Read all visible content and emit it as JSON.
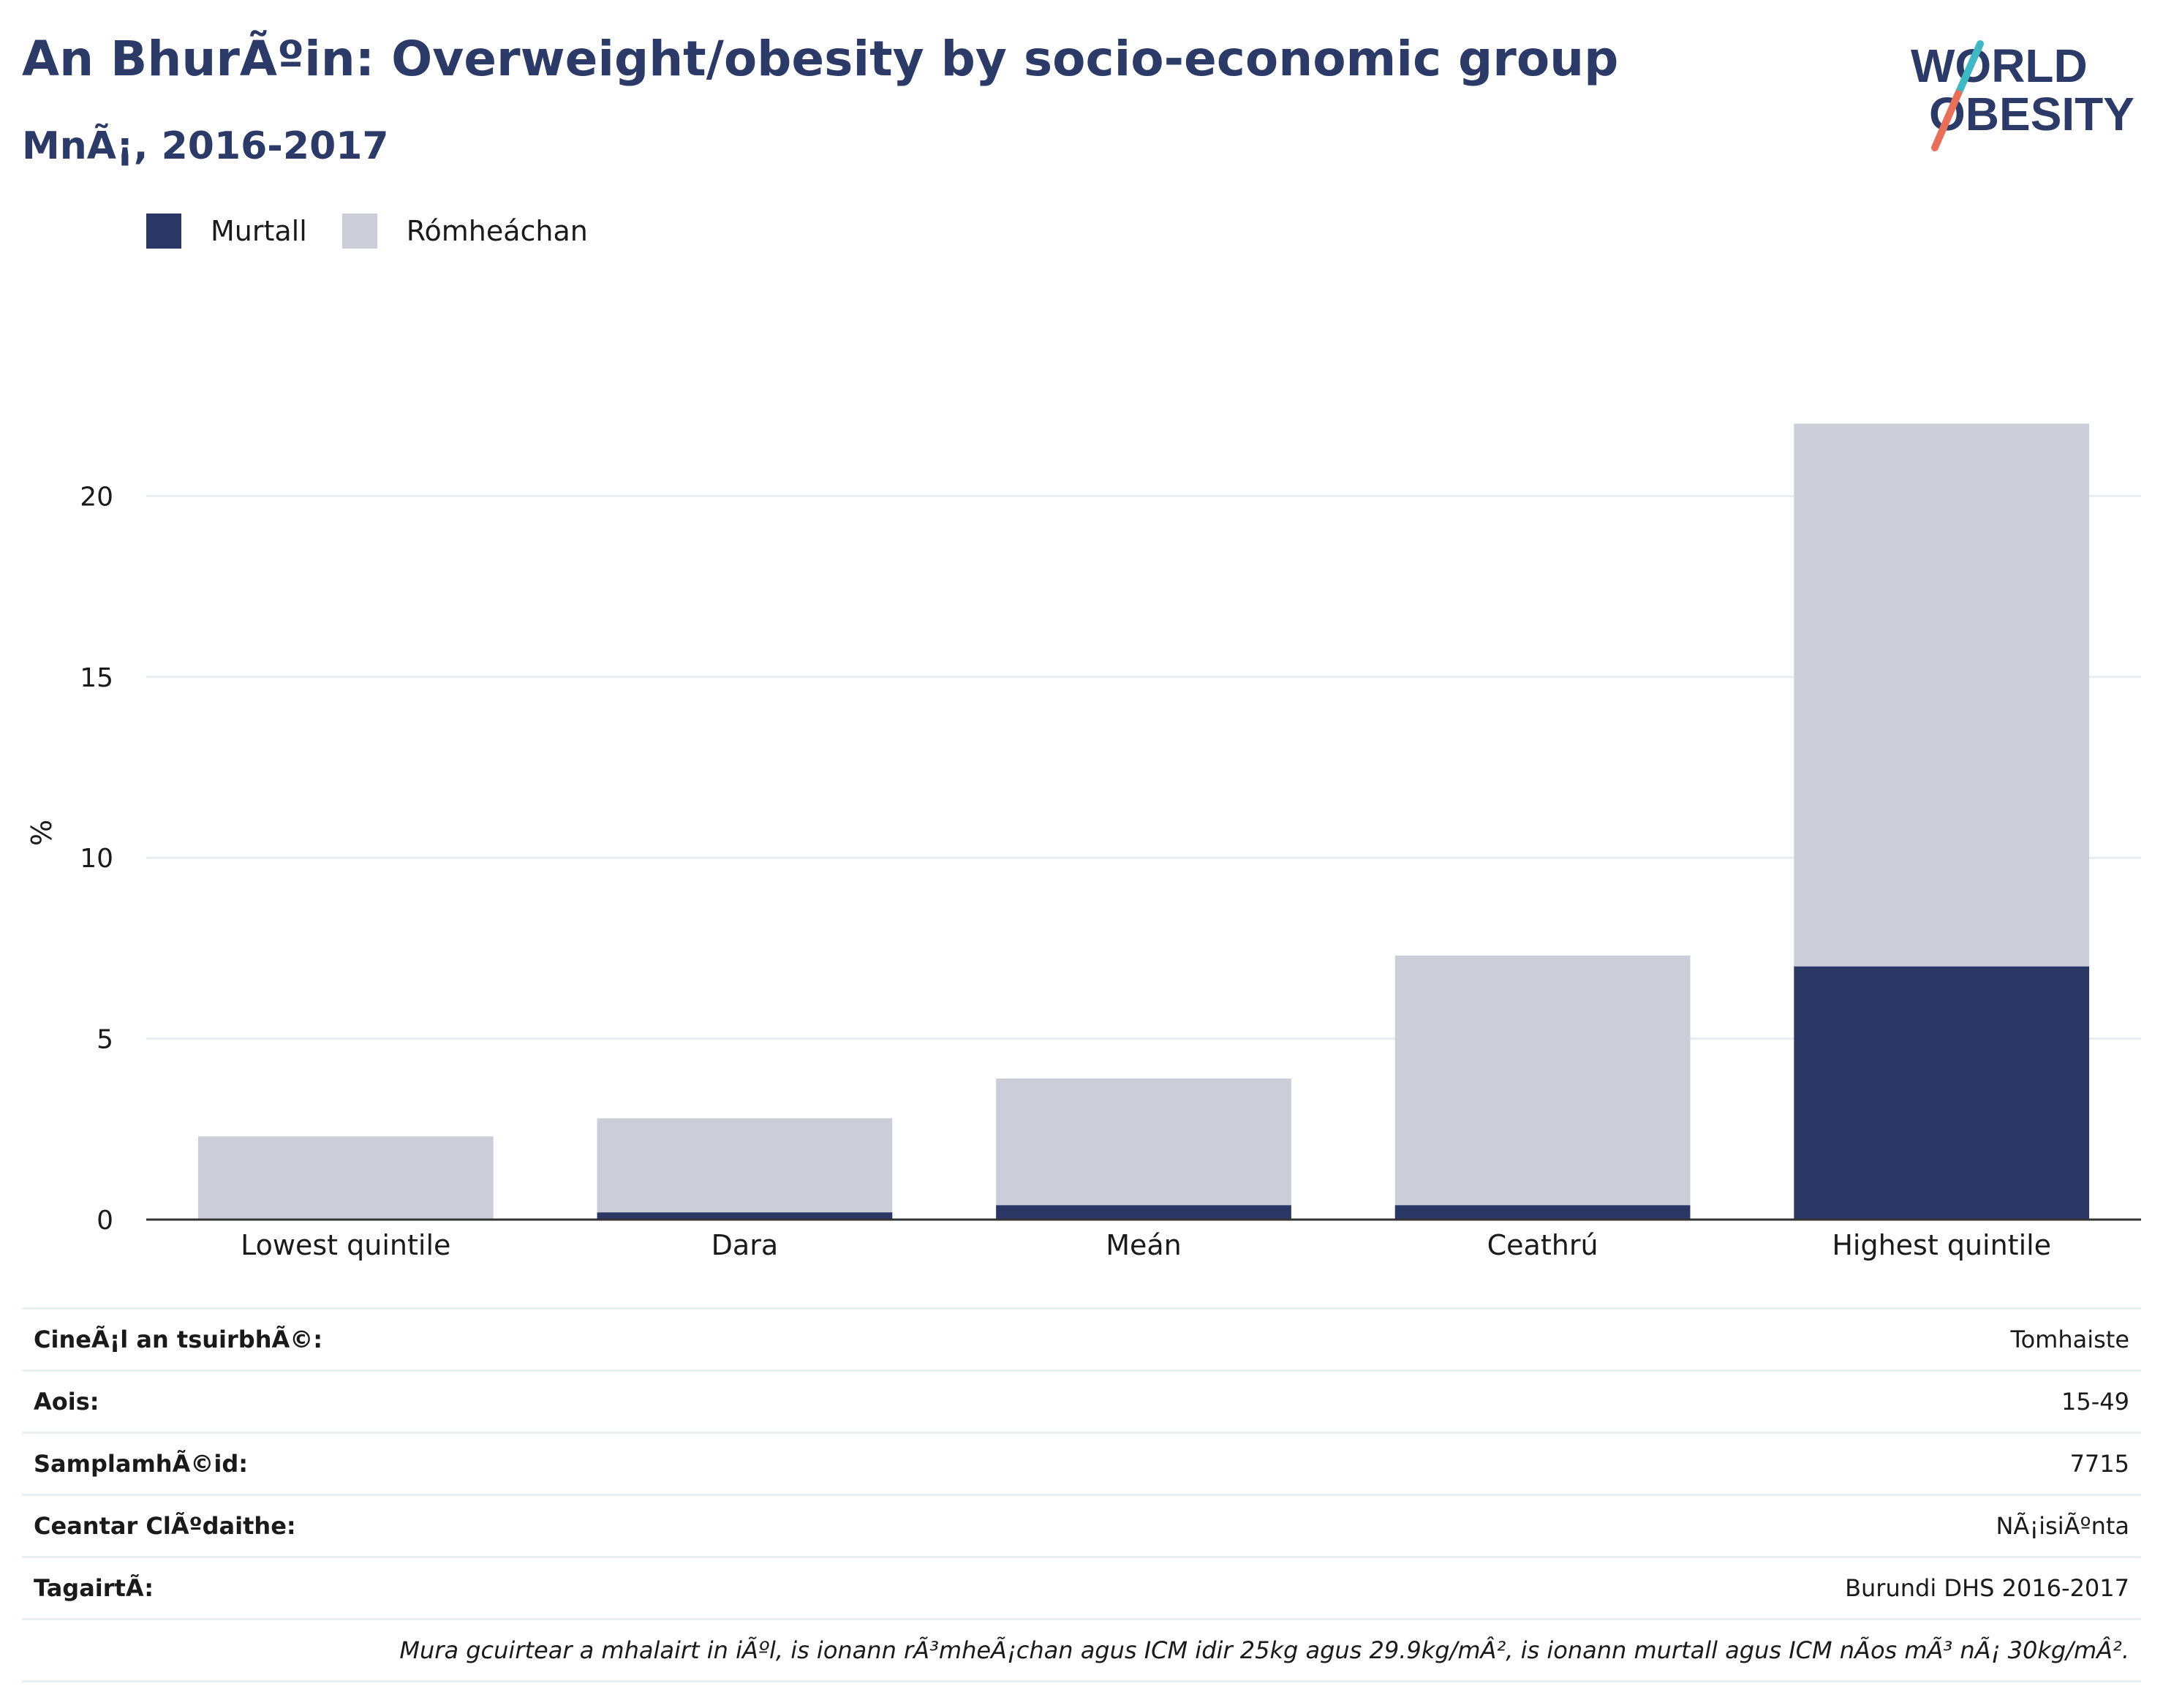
{
  "header": {
    "title": "An BhurÃºin: Overweight/obesity by socio-economic group",
    "subtitle": "MnÃ¡, 2016-2017"
  },
  "logo": {
    "line1": "WORLD",
    "line2": "OBESITY"
  },
  "colors": {
    "obese": "#2b3764",
    "overweight": "#cbcdd8",
    "title": "#2b3a67",
    "grid": "#e8edf0"
  },
  "chart_data": {
    "type": "bar",
    "stacked": true,
    "categories": [
      "Lowest quintile",
      "Dara",
      "Meán",
      "Ceathrú",
      "Highest quintile"
    ],
    "series": [
      {
        "name": "Murtall",
        "values": [
          0.0,
          0.2,
          0.4,
          0.4,
          7.0
        ]
      },
      {
        "name": "Rómheáchan",
        "values": [
          2.3,
          2.6,
          3.5,
          6.9,
          15.0
        ]
      }
    ],
    "ylabel": "%",
    "ylim": [
      0,
      23
    ],
    "yticks": [
      0,
      5,
      10,
      15,
      20
    ],
    "grid": true,
    "legend_position": "top-left"
  },
  "info": {
    "rows": [
      {
        "label": "CineÃ¡l an tsuirbhÃ©:",
        "value": "Tomhaiste"
      },
      {
        "label": "Aois:",
        "value": "15-49"
      },
      {
        "label": "SamplamhÃ©id:",
        "value": "7715"
      },
      {
        "label": "Ceantar ClÃºdaithe:",
        "value": "NÃ¡isiÃºnta"
      },
      {
        "label": "TagairtÃ:",
        "value": "Burundi DHS 2016-2017"
      }
    ],
    "note": "Mura gcuirtear a mhalairt in iÃºl, is ionann rÃ³mheÃ¡chan agus ICM idir 25kg agus 29.9kg/mÂ², is ionann murtall agus ICM nÃ­os mÃ³ nÃ¡ 30kg/mÂ²."
  }
}
